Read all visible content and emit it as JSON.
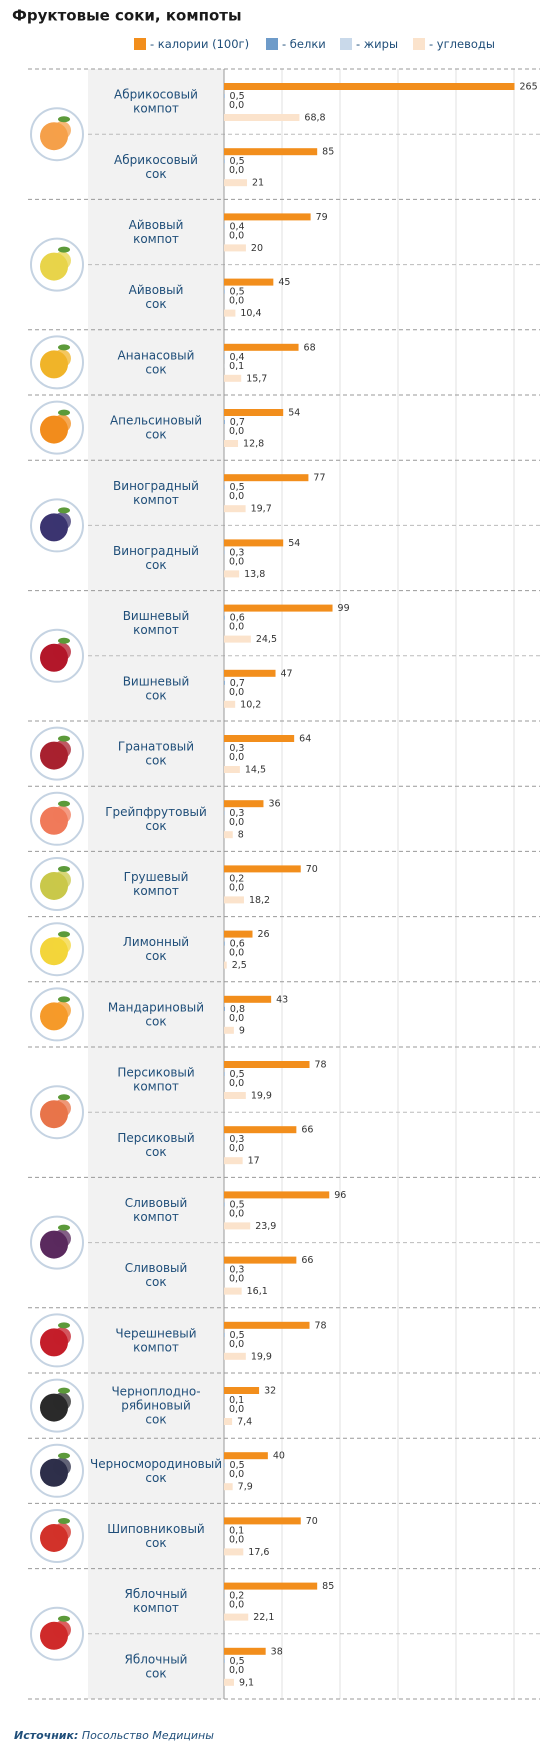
{
  "chart_data": {
    "type": "bar",
    "orientation": "horizontal",
    "title": "Фруктовые соки, компоты",
    "categories": [
      "Абрикосовый\nкомпот",
      "Абрикосовый\nсок",
      "Айвовый\nкомпот",
      "Айвовый\nсок",
      "Ананасовый\nсок",
      "Апельсиновый\nсок",
      "Виноградный\nкомпот",
      "Виноградный\nсок",
      "Вишневый\nкомпот",
      "Вишневый\nсок",
      "Гранатовый\nсок",
      "Грейпфрутовый\nсок",
      "Грушевый\nкомпот",
      "Лимонный\nсок",
      "Мандариновый\nсок",
      "Персиковый\nкомпот",
      "Персиковый\nсок",
      "Сливовый\nкомпот",
      "Сливовый\nсок",
      "Черешневый\nкомпот",
      "Черноплодно-\nрябиновый\nсок",
      "Черносмородиновый\nсок",
      "Шиповниковый\nсок",
      "Яблочный\nкомпот",
      "Яблочный\nсок"
    ],
    "series": [
      {
        "name": "- калории (100г)",
        "color": "#f28e1c",
        "values": [
          265,
          85,
          79,
          45,
          68,
          54,
          77,
          54,
          99,
          47,
          64,
          36,
          70,
          26,
          43,
          78,
          66,
          96,
          66,
          78,
          32,
          40,
          70,
          85,
          38
        ]
      },
      {
        "name": "- белки",
        "color": "#6e9bc9",
        "values": [
          0.5,
          0.5,
          0.4,
          0.5,
          0.4,
          0.7,
          0.5,
          0.3,
          0.6,
          0.7,
          0.3,
          0.3,
          0.2,
          0.6,
          0.8,
          0.5,
          0.3,
          0.5,
          0.3,
          0.5,
          0.1,
          0.5,
          0.1,
          0.2,
          0.5
        ],
        "value_labels": [
          "0,5",
          "0,5",
          "0,4",
          "0,5",
          "0,4",
          "0,7",
          "0,5",
          "0,3",
          "0,6",
          "0,7",
          "0,3",
          "0,3",
          "0,2",
          "0,6",
          "0,8",
          "0,5",
          "0,3",
          "0,5",
          "0,3",
          "0,5",
          "0,1",
          "0,5",
          "0,1",
          "0,2",
          "0,5"
        ]
      },
      {
        "name": "- жиры",
        "color": "#c9d9ea",
        "values": [
          0,
          0,
          0,
          0,
          0.1,
          0,
          0,
          0,
          0,
          0,
          0,
          0,
          0,
          0,
          0,
          0,
          0,
          0,
          0,
          0,
          0,
          0,
          0,
          0,
          0
        ],
        "value_labels": [
          "0,0",
          "0,0",
          "0,0",
          "0,0",
          "0,1",
          "0,0",
          "0,0",
          "0,0",
          "0,0",
          "0,0",
          "0,0",
          "0,0",
          "0,0",
          "0,0",
          "0,0",
          "0,0",
          "0,0",
          "0,0",
          "0,0",
          "0,0",
          "0,0",
          "0,0",
          "0,0",
          "0,0",
          "0,0"
        ]
      },
      {
        "name": "- углеводы",
        "color": "#fbe3cc",
        "values": [
          68.8,
          21,
          20,
          10.4,
          15.7,
          12.8,
          19.7,
          13.8,
          24.5,
          10.2,
          14.5,
          8,
          18.2,
          2.5,
          9,
          19.9,
          17,
          23.9,
          16.1,
          19.9,
          7.4,
          7.9,
          17.6,
          22.1,
          9.1
        ],
        "value_labels": [
          "68,8",
          "21",
          "20",
          "10,4",
          "15,7",
          "12,8",
          "19,7",
          "13,8",
          "24,5",
          "10,2",
          "14,5",
          "8",
          "18,2",
          "2,5",
          "9",
          "19,9",
          "17",
          "23,9",
          "16,1",
          "19,9",
          "7,4",
          "7,9",
          "17,6",
          "22,1",
          "9,1"
        ]
      }
    ],
    "xlim": [
      0,
      270
    ],
    "legend": "top-right",
    "source": {
      "label": "Источник:",
      "text": "Посольство Медицины"
    }
  }
}
